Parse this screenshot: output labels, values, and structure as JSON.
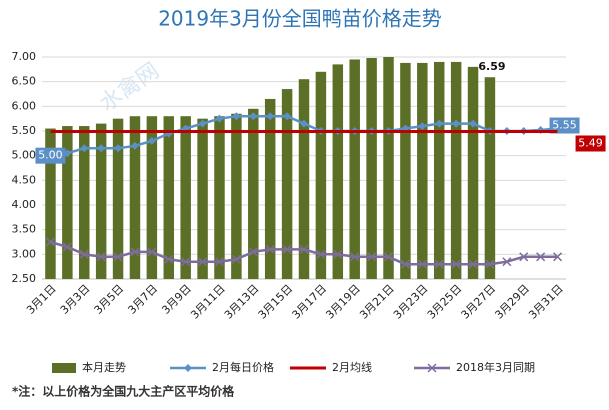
{
  "chart_data": {
    "type": "bar",
    "title": "2019年3月份全国鸭苗价格走势",
    "watermark": "水禽网",
    "note": "*注：以上价格为全国九大主产区平均价格",
    "categories": [
      "3月1日",
      null,
      "3月3日",
      null,
      "3月5日",
      null,
      "3月7日",
      null,
      "3月9日",
      null,
      "3月11日",
      null,
      "3月13日",
      null,
      "3月15日",
      null,
      "3月17日",
      null,
      "3月19日",
      null,
      "3月21日",
      null,
      "3月23日",
      null,
      "3月25日",
      null,
      "3月27日",
      null,
      "3月29日",
      null,
      "3月31日"
    ],
    "ylim": [
      2.5,
      7.0
    ],
    "yticks": [
      {
        "value": 2.5,
        "label": "2.50"
      },
      {
        "value": 3,
        "label": "3.00"
      },
      {
        "value": 3.5,
        "label": "3.50"
      },
      {
        "value": 4,
        "label": "4.00"
      },
      {
        "value": 4.5,
        "label": "4.50"
      },
      {
        "value": 5,
        "label": "5.00"
      },
      {
        "value": 5.5,
        "label": "5.50"
      },
      {
        "value": 6,
        "label": "6.00"
      },
      {
        "value": 6.5,
        "label": "6.50"
      },
      {
        "value": 7,
        "label": "7.00"
      }
    ],
    "grid": true,
    "legend": "bottom",
    "series": [
      {
        "name": "本月走势",
        "kind": "bar",
        "color": "#5b6f27",
        "values": [
          5.55,
          5.6,
          5.6,
          5.65,
          5.75,
          5.8,
          5.8,
          5.8,
          5.8,
          5.75,
          5.8,
          5.85,
          5.95,
          6.15,
          6.35,
          6.55,
          6.7,
          6.85,
          6.95,
          6.98,
          7.0,
          6.88,
          6.88,
          6.9,
          6.9,
          6.8,
          6.59,
          null,
          null,
          null,
          null
        ],
        "value_labels": [
          null,
          null,
          null,
          null,
          null,
          null,
          null,
          null,
          null,
          null,
          null,
          null,
          null,
          null,
          null,
          null,
          null,
          null,
          null,
          null,
          null,
          null,
          null,
          null,
          null,
          null,
          "6.59",
          null,
          null,
          null,
          null
        ]
      },
      {
        "name": "2月每日价格",
        "kind": "line",
        "marker": "diamond",
        "color": "#5b8fc7",
        "values": [
          5.0,
          5.05,
          5.15,
          5.15,
          5.15,
          5.2,
          5.3,
          5.45,
          5.55,
          5.65,
          5.75,
          5.8,
          5.8,
          5.8,
          5.8,
          5.65,
          5.5,
          5.5,
          5.5,
          5.5,
          5.5,
          5.55,
          5.6,
          5.65,
          5.65,
          5.65,
          5.5,
          5.5,
          5.5,
          5.52,
          5.55
        ],
        "value_labels": [
          "5.00",
          null,
          null,
          null,
          null,
          null,
          null,
          null,
          null,
          null,
          null,
          null,
          null,
          null,
          null,
          null,
          null,
          null,
          null,
          null,
          null,
          null,
          null,
          null,
          null,
          null,
          null,
          null,
          null,
          null,
          "5.55"
        ]
      },
      {
        "name": "2月均线",
        "kind": "line",
        "marker": "none",
        "color": "#c00000",
        "values": [
          5.49,
          5.49,
          5.49,
          5.49,
          5.49,
          5.49,
          5.49,
          5.49,
          5.49,
          5.49,
          5.49,
          5.49,
          5.49,
          5.49,
          5.49,
          5.49,
          5.49,
          5.49,
          5.49,
          5.49,
          5.49,
          5.49,
          5.49,
          5.49,
          5.49,
          5.49,
          5.49,
          5.49,
          5.49,
          5.49,
          5.49
        ],
        "value_labels": [
          null,
          null,
          null,
          null,
          null,
          null,
          null,
          null,
          null,
          null,
          null,
          null,
          null,
          null,
          null,
          null,
          null,
          null,
          null,
          null,
          null,
          null,
          null,
          null,
          null,
          null,
          null,
          null,
          null,
          null,
          "5.49"
        ]
      },
      {
        "name": "2018年3月同期",
        "kind": "line",
        "marker": "cross",
        "color": "#7e6c9c",
        "values": [
          3.25,
          3.15,
          3.0,
          2.95,
          2.95,
          3.05,
          3.05,
          2.9,
          2.85,
          2.85,
          2.85,
          2.9,
          3.05,
          3.1,
          3.1,
          3.1,
          3.0,
          3.0,
          2.95,
          2.95,
          2.95,
          2.8,
          2.8,
          2.8,
          2.8,
          2.8,
          2.8,
          2.85,
          2.95,
          2.95,
          2.95
        ]
      }
    ]
  }
}
